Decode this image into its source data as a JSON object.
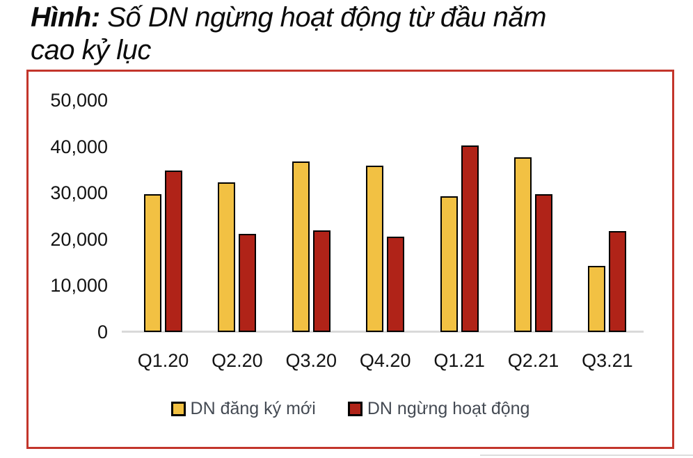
{
  "title": {
    "prefix": "Hình:",
    "line1_rest": " Số DN ngừng hoạt động từ đầu năm",
    "line2": "cao kỷ lục"
  },
  "colors": {
    "frame_border": "#C3352B",
    "axis_line": "#D9D9D9",
    "bar_outline": "#000000",
    "new_series": "#F2C143",
    "ceased_series": "#B02318"
  },
  "chart_data": {
    "type": "bar",
    "title": "Số DN ngừng hoạt động từ đầu năm cao kỷ lục",
    "categories": [
      "Q1.20",
      "Q2.20",
      "Q3.20",
      "Q4.20",
      "Q1.21",
      "Q2.21",
      "Q3.21"
    ],
    "series": [
      {
        "key": "dn-dang-ky-moi",
        "name": "DN đăng ký mới",
        "color": "#F2C143",
        "values": [
          29700,
          32300,
          36800,
          35900,
          29300,
          37700,
          14300
        ]
      },
      {
        "key": "dn-ngung-hoat-dong",
        "name": "DN ngừng hoạt động",
        "color": "#B02318",
        "values": [
          34900,
          21200,
          21900,
          20500,
          40300,
          29800,
          21700
        ]
      }
    ],
    "xlabel": "",
    "ylabel": "",
    "ylim": [
      0,
      50000
    ],
    "yticks": [
      {
        "value": 0,
        "label": "0"
      },
      {
        "value": 10000,
        "label": "10,000"
      },
      {
        "value": 20000,
        "label": "20,000"
      },
      {
        "value": 30000,
        "label": "30,000"
      },
      {
        "value": 40000,
        "label": "40,000"
      },
      {
        "value": 50000,
        "label": "50,000"
      }
    ],
    "grid": false,
    "legend_position": "bottom"
  }
}
